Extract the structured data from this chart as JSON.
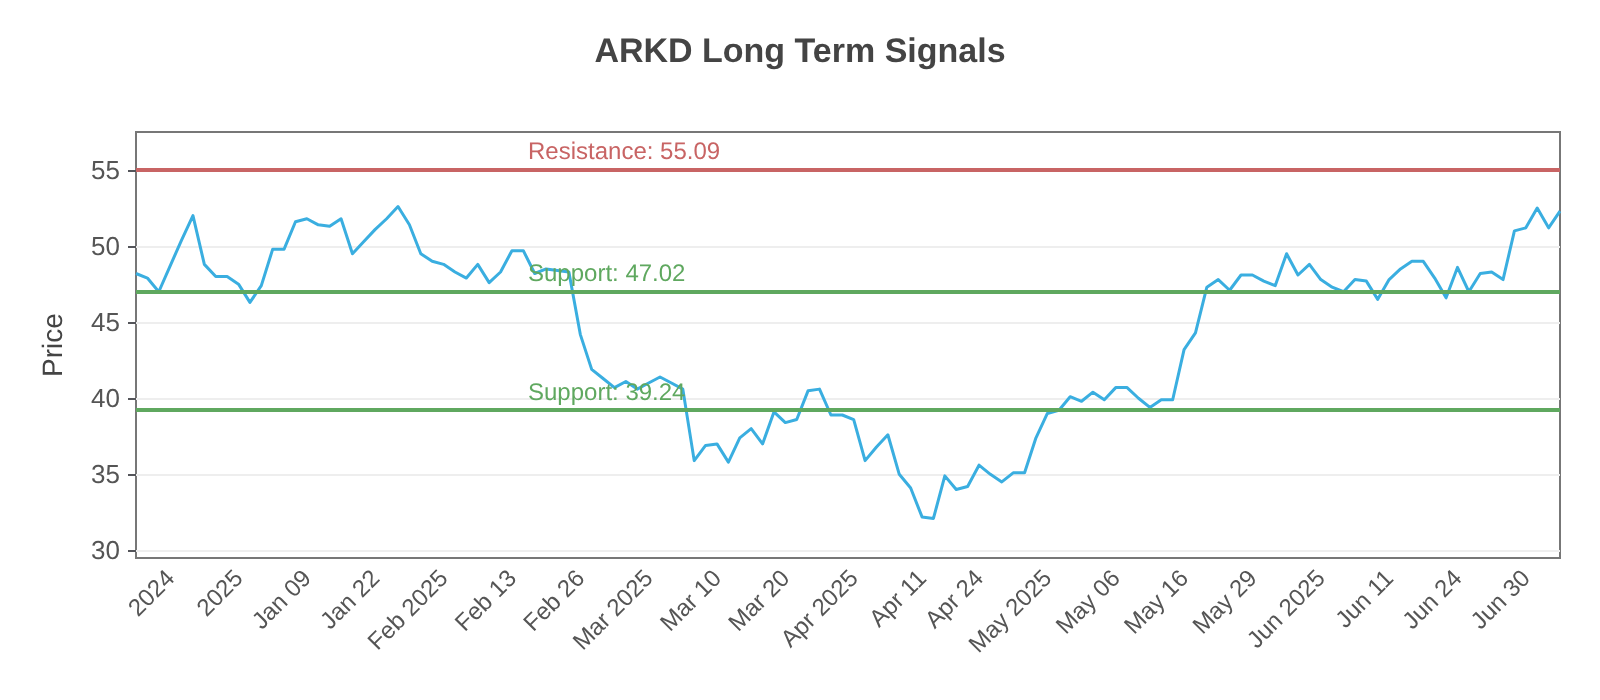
{
  "chart_data": {
    "type": "line",
    "title": "ARKD Long Term Signals",
    "ylabel": "Price",
    "categories": [
      null,
      null,
      null,
      "2024",
      null,
      null,
      null,
      null,
      null,
      "2025",
      null,
      null,
      null,
      null,
      null,
      "Jan 09",
      null,
      null,
      null,
      null,
      null,
      "Jan 22",
      null,
      null,
      null,
      null,
      null,
      "Feb 2025",
      null,
      null,
      null,
      null,
      null,
      "Feb 13",
      null,
      null,
      null,
      null,
      null,
      "Feb 26",
      null,
      null,
      null,
      null,
      null,
      "Mar 2025",
      null,
      null,
      null,
      null,
      null,
      "Mar 10",
      null,
      null,
      null,
      null,
      null,
      "Mar 20",
      null,
      null,
      null,
      null,
      null,
      "Apr 2025",
      null,
      null,
      null,
      null,
      null,
      "Apr 11",
      null,
      null,
      null,
      null,
      "Apr 24",
      null,
      null,
      null,
      null,
      null,
      "May 2025",
      null,
      null,
      null,
      null,
      null,
      "May 06",
      null,
      null,
      null,
      null,
      null,
      "May 16",
      null,
      null,
      null,
      null,
      null,
      "May 29",
      null,
      null,
      null,
      null,
      null,
      "Jun 2025",
      null,
      null,
      null,
      null,
      null,
      "Jun 11",
      null,
      null,
      null,
      null,
      null,
      "Jun 24",
      null,
      null,
      null,
      null,
      null,
      "Jun 30",
      null,
      null,
      null
    ],
    "series": [
      {
        "color": "#3aaee0",
        "values": [
          48.2,
          47.9,
          47.0,
          48.7,
          50.4,
          52.0,
          48.8,
          48.0,
          48.0,
          47.5,
          46.3,
          47.4,
          49.8,
          49.8,
          51.6,
          51.8,
          51.4,
          51.3,
          51.8,
          49.5,
          50.3,
          51.1,
          51.8,
          52.6,
          51.4,
          49.5,
          49.0,
          48.8,
          48.3,
          47.9,
          48.8,
          47.6,
          48.3,
          49.7,
          49.7,
          48.2,
          48.5,
          48.4,
          48.3,
          44.2,
          41.9,
          41.3,
          40.7,
          41.1,
          40.6,
          41.0,
          41.4,
          41.0,
          40.6,
          35.9,
          36.9,
          37.0,
          35.8,
          37.4,
          38.0,
          37.0,
          39.1,
          38.4,
          38.6,
          40.5,
          40.6,
          38.9,
          38.9,
          38.6,
          35.9,
          36.8,
          37.6,
          35.0,
          34.1,
          32.2,
          32.1,
          34.9,
          34.0,
          34.2,
          35.6,
          35.0,
          34.5,
          35.1,
          35.1,
          37.4,
          39.0,
          39.2,
          40.1,
          39.8,
          40.4,
          39.9,
          40.7,
          40.7,
          40.0,
          39.4,
          39.9,
          39.9,
          43.2,
          44.3,
          47.3,
          47.8,
          47.1,
          48.1,
          48.1,
          47.7,
          47.4,
          49.5,
          48.1,
          48.8,
          47.8,
          47.3,
          47.0,
          47.8,
          47.7,
          46.5,
          47.8,
          48.5,
          49.0,
          49.0,
          47.9,
          46.6,
          48.6,
          47.0,
          48.2,
          48.3,
          47.8,
          51.0,
          51.2,
          52.5,
          51.2,
          52.3
        ]
      }
    ],
    "ylim": [
      29.5,
      57.5
    ],
    "yticks": [
      30,
      35,
      40,
      45,
      50,
      55
    ],
    "grid": "y",
    "marker": "none",
    "line_style": "solid",
    "ref_lines": [
      {
        "axis": "y",
        "value": 55.09,
        "label": "Resistance: 55.09",
        "color": "#c86464"
      },
      {
        "axis": "y",
        "value": 47.02,
        "label": "Support: 47.02",
        "color": "#5fa85f"
      },
      {
        "axis": "y",
        "value": 39.24,
        "label": "Support: 39.24",
        "color": "#5fa85f"
      }
    ]
  }
}
